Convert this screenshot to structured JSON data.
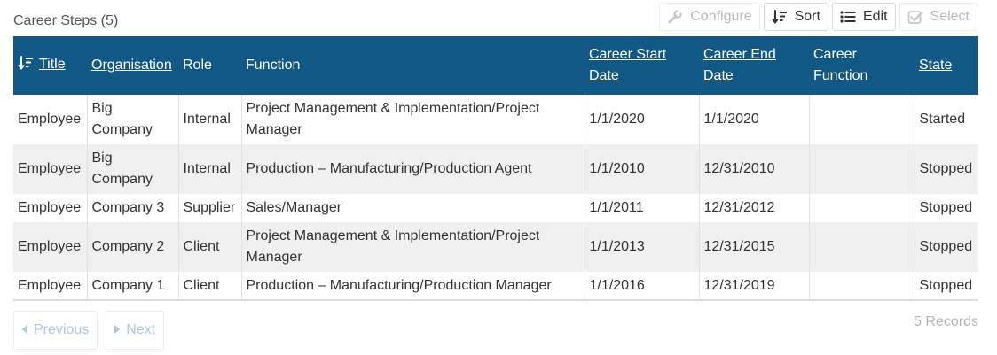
{
  "panel": {
    "title": "Career Steps (5)"
  },
  "toolbar": {
    "configure": "Configure",
    "sort": "Sort",
    "edit": "Edit",
    "select": "Select"
  },
  "table": {
    "headers": {
      "title": "Title",
      "organisation": "Organisation",
      "role": "Role",
      "function": "Function",
      "career_start_date": "Career Start Date",
      "career_end_date": "Career End Date",
      "career_function": "Career Function",
      "state": "State"
    },
    "rows": [
      {
        "title": "Employee",
        "organisation": "Big Company",
        "role": "Internal",
        "function": "Project Management & Implementation/Project Manager",
        "start": "1/1/2020",
        "end": "1/1/2020",
        "career_function": "",
        "state": "Started"
      },
      {
        "title": "Employee",
        "organisation": "Big Company",
        "role": "Internal",
        "function": "Production – Manufacturing/Production Agent",
        "start": "1/1/2010",
        "end": "12/31/2010",
        "career_function": "",
        "state": "Stopped"
      },
      {
        "title": "Employee",
        "organisation": "Company 3",
        "role": "Supplier",
        "function": "Sales/Manager",
        "start": "1/1/2011",
        "end": "12/31/2012",
        "career_function": "",
        "state": "Stopped"
      },
      {
        "title": "Employee",
        "organisation": "Company 2",
        "role": "Client",
        "function": "Project Management & Implementation/Project Manager",
        "start": "1/1/2013",
        "end": "12/31/2015",
        "career_function": "",
        "state": "Stopped"
      },
      {
        "title": "Employee",
        "organisation": "Company 1",
        "role": "Client",
        "function": "Production – Manufacturing/Production Manager",
        "start": "1/1/2016",
        "end": "12/31/2019",
        "career_function": "",
        "state": "Stopped"
      }
    ]
  },
  "pager": {
    "previous": "Previous",
    "next": "Next",
    "records": "5 Records"
  },
  "colors": {
    "header_bg": "#125885",
    "alt_row_bg": "#f0f0f0",
    "pager_text": "#a9c8e0"
  },
  "icons": {
    "configure": "wrench-icon",
    "sort": "sort-descending-icon",
    "edit": "list-icon",
    "select": "checkbox-icon",
    "previous": "caret-left-icon",
    "next": "caret-right-icon"
  }
}
